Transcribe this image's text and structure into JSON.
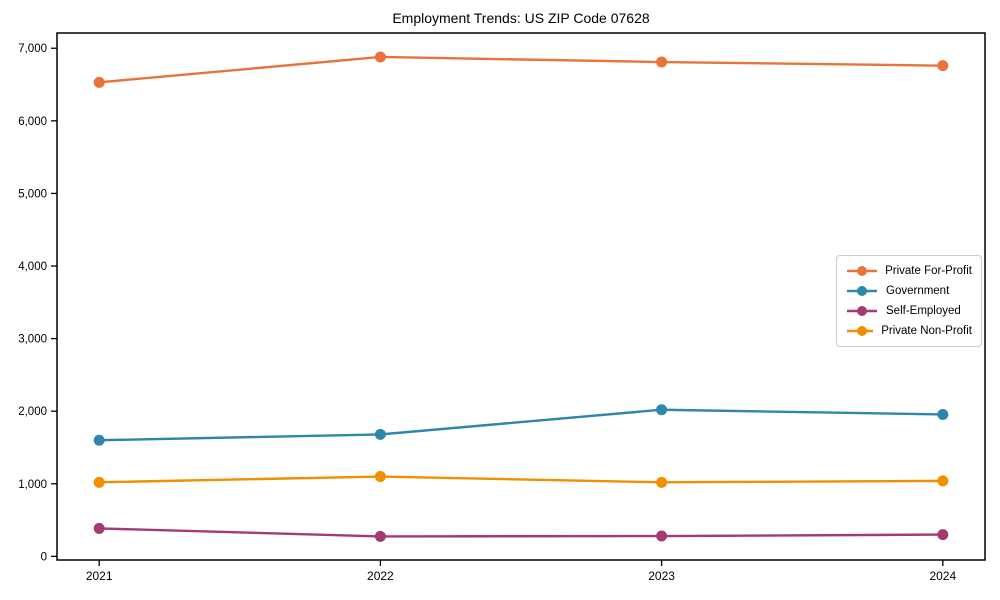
{
  "figure": {
    "background": "#ffffff"
  },
  "chart_data": {
    "type": "line",
    "title": "Employment Trends: US ZIP Code 07628",
    "xlabel": "",
    "ylabel": "",
    "categories": [
      "2021",
      "2022",
      "2023",
      "2024"
    ],
    "x": [
      2021,
      2022,
      2023,
      2024
    ],
    "series": [
      {
        "name": "Private For-Profit",
        "color": "#E8743B",
        "values": [
          6530,
          6880,
          6810,
          6760
        ]
      },
      {
        "name": "Government",
        "color": "#2E86AB",
        "values": [
          1600,
          1680,
          2020,
          1955
        ]
      },
      {
        "name": "Self-Employed",
        "color": "#A23B72",
        "values": [
          385,
          275,
          280,
          300
        ]
      },
      {
        "name": "Private Non-Profit",
        "color": "#F18F01",
        "values": [
          1020,
          1100,
          1020,
          1040
        ]
      }
    ],
    "yticks": [
      0,
      1000,
      2000,
      3000,
      4000,
      5000,
      6000,
      7000
    ],
    "ytick_labels": [
      "0",
      "1,000",
      "2,000",
      "3,000",
      "4,000",
      "5,000",
      "6,000",
      "7,000"
    ],
    "ylim": [
      -50,
      7210
    ],
    "xlim": [
      2020.85,
      2024.15
    ],
    "grid": false,
    "legend_position": "center-right",
    "axis_color": "#000000",
    "text_color": "#000000",
    "line_width": 2.4,
    "marker": "circle",
    "marker_radius": 5.5
  }
}
